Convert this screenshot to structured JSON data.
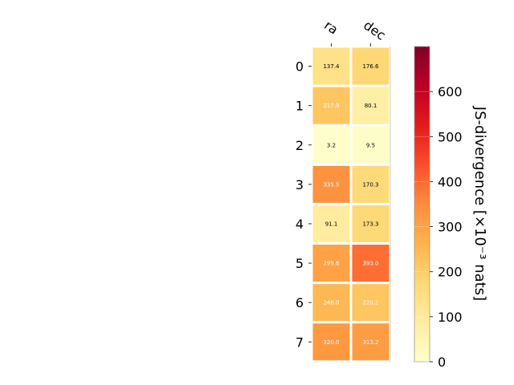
{
  "chart_data": {
    "type": "heatmap",
    "title": "",
    "columns": [
      "ra",
      "dec"
    ],
    "rows": [
      "0",
      "1",
      "2",
      "3",
      "4",
      "5",
      "6",
      "7"
    ],
    "values": [
      [
        137.4,
        176.6
      ],
      [
        217.9,
        80.1
      ],
      [
        3.2,
        9.5
      ],
      [
        335.5,
        170.3
      ],
      [
        91.1,
        173.3
      ],
      [
        299.6,
        393.0
      ],
      [
        248.0,
        220.2
      ],
      [
        320.0,
        313.2
      ]
    ],
    "colorbar": {
      "label": "JS-divergence [×10⁻³ nats]",
      "range": [
        0,
        700
      ],
      "ticks": [
        0,
        100,
        200,
        300,
        400,
        500,
        600
      ],
      "colormap": "YlOrRd"
    }
  }
}
